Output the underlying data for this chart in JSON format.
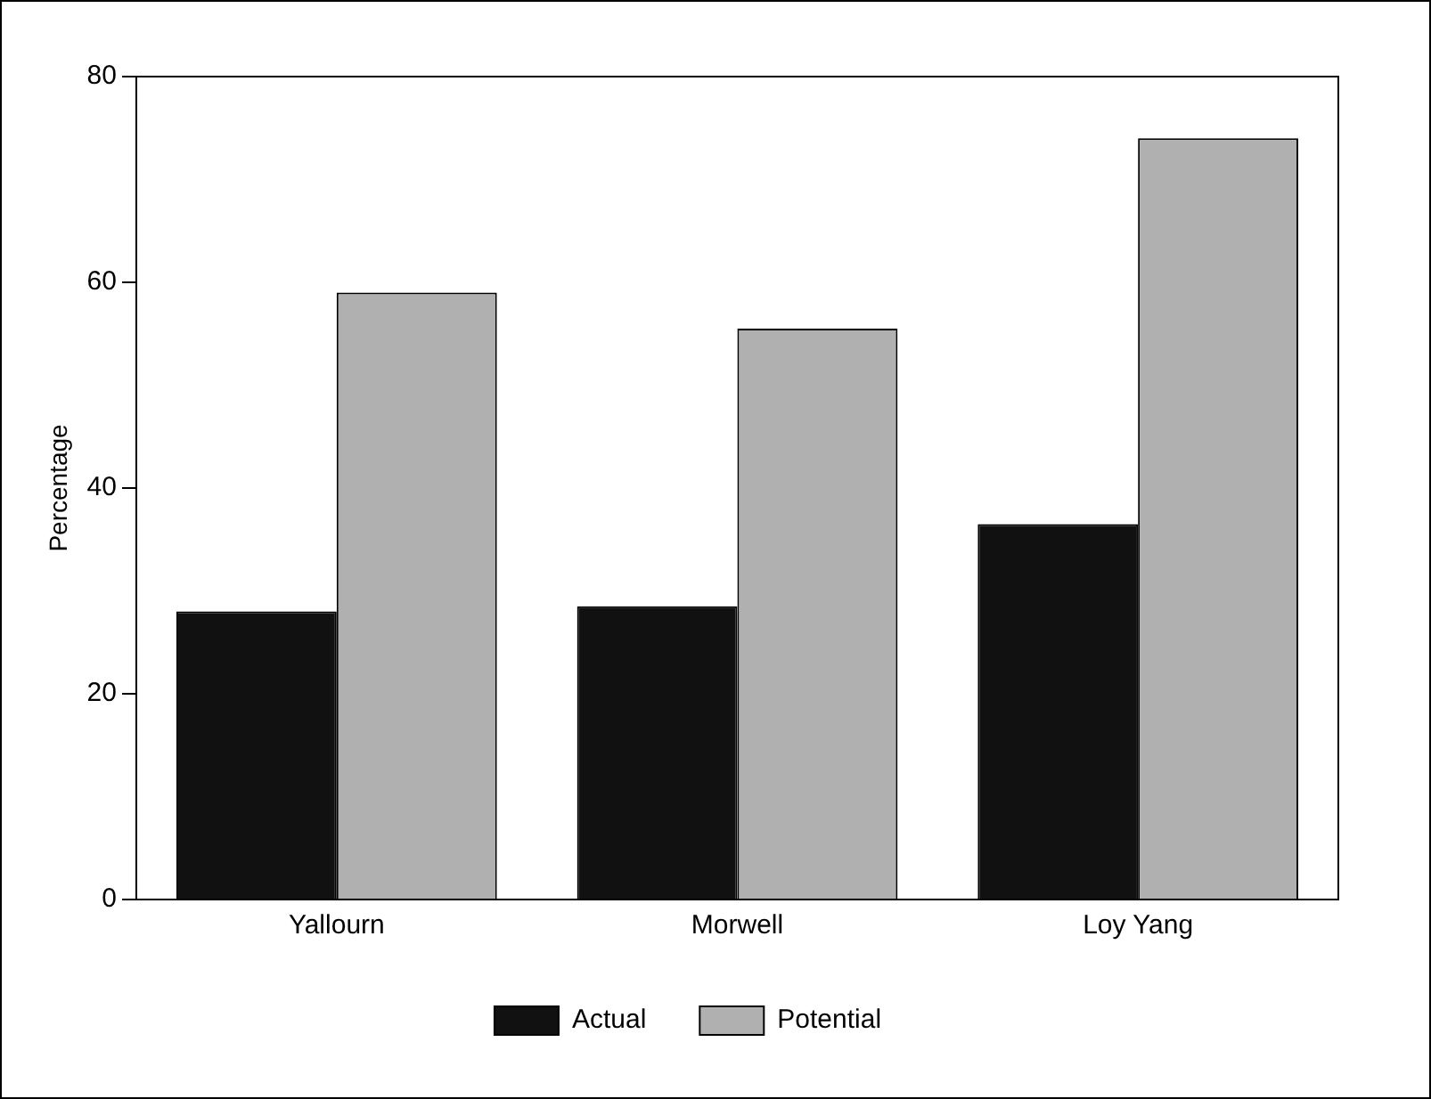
{
  "chart_data": {
    "type": "bar",
    "ylabel": "Percentage",
    "categories": [
      "Yallourn",
      "Morwell",
      "Loy Yang"
    ],
    "series": [
      {
        "name": "Actual",
        "color": "#111111",
        "values": [
          28,
          28.5,
          36.5
        ]
      },
      {
        "name": "Potential",
        "color": "#b0b0b0",
        "values": [
          59,
          55.5,
          74
        ]
      }
    ],
    "ylim": [
      0,
      80
    ],
    "yticks": [
      0,
      20,
      40,
      60,
      80
    ],
    "grid": false,
    "legend": "bottom"
  }
}
